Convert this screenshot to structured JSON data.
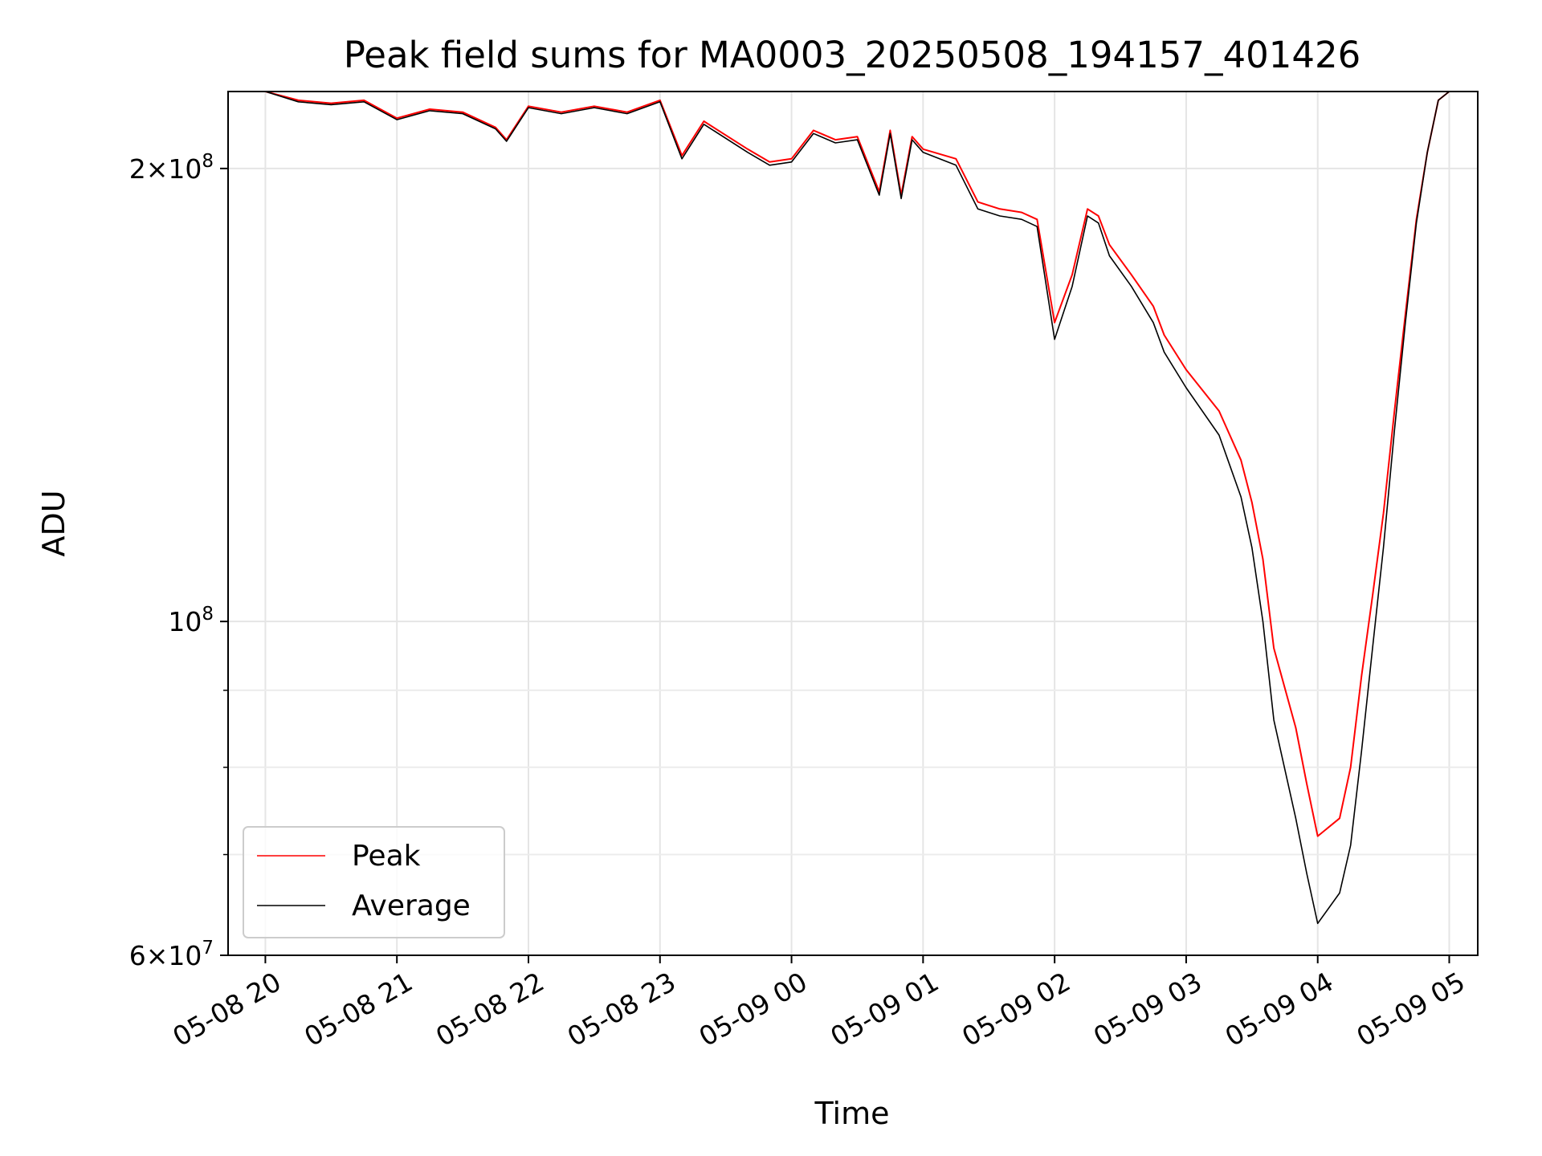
{
  "chart_data": {
    "type": "line",
    "title": "Peak field sums for MA0003_20250508_194157_401426",
    "xlabel": "Time",
    "ylabel": "ADU",
    "y_scale": "log",
    "ylim": [
      60000000,
      225000000
    ],
    "xlim": [
      "2025-05-08 19:43",
      "2025-05-09 05:13"
    ],
    "grid": true,
    "legend_position": "lower-left",
    "x_ticks": [
      {
        "value": "2025-05-08 20:00",
        "label": "05-08 20"
      },
      {
        "value": "2025-05-08 21:00",
        "label": "05-08 21"
      },
      {
        "value": "2025-05-08 22:00",
        "label": "05-08 22"
      },
      {
        "value": "2025-05-08 23:00",
        "label": "05-08 23"
      },
      {
        "value": "2025-05-09 00:00",
        "label": "05-09 00"
      },
      {
        "value": "2025-05-09 01:00",
        "label": "05-09 01"
      },
      {
        "value": "2025-05-09 02:00",
        "label": "05-09 02"
      },
      {
        "value": "2025-05-09 03:00",
        "label": "05-09 03"
      },
      {
        "value": "2025-05-09 04:00",
        "label": "05-09 04"
      },
      {
        "value": "2025-05-09 05:00",
        "label": "05-09 05"
      }
    ],
    "y_ticks": [
      {
        "value": 60000000,
        "mantissa": "6",
        "exponent": "7"
      },
      {
        "value": 100000000,
        "mantissa": "",
        "exponent": "8"
      },
      {
        "value": 200000000,
        "mantissa": "2",
        "exponent": "8"
      }
    ],
    "y_minor_ticks": [
      70000000,
      80000000,
      90000000
    ],
    "series": [
      {
        "name": "Peak",
        "color": "#ff0000",
        "x": [
          "2025-05-08 20:00",
          "2025-05-08 20:15",
          "2025-05-08 20:30",
          "2025-05-08 20:45",
          "2025-05-08 21:00",
          "2025-05-08 21:15",
          "2025-05-08 21:30",
          "2025-05-08 21:45",
          "2025-05-08 21:50",
          "2025-05-08 22:00",
          "2025-05-08 22:15",
          "2025-05-08 22:30",
          "2025-05-08 22:45",
          "2025-05-08 23:00",
          "2025-05-08 23:10",
          "2025-05-08 23:20",
          "2025-05-08 23:40",
          "2025-05-08 23:50",
          "2025-05-09 00:00",
          "2025-05-09 00:10",
          "2025-05-09 00:20",
          "2025-05-09 00:30",
          "2025-05-09 00:40",
          "2025-05-09 00:45",
          "2025-05-09 00:50",
          "2025-05-09 00:55",
          "2025-05-09 01:00",
          "2025-05-09 01:15",
          "2025-05-09 01:25",
          "2025-05-09 01:35",
          "2025-05-09 01:45",
          "2025-05-09 01:52",
          "2025-05-09 02:00",
          "2025-05-09 02:08",
          "2025-05-09 02:15",
          "2025-05-09 02:20",
          "2025-05-09 02:25",
          "2025-05-09 02:35",
          "2025-05-09 02:45",
          "2025-05-09 02:50",
          "2025-05-09 03:00",
          "2025-05-09 03:15",
          "2025-05-09 03:25",
          "2025-05-09 03:30",
          "2025-05-09 03:35",
          "2025-05-09 03:40",
          "2025-05-09 03:50",
          "2025-05-09 03:55",
          "2025-05-09 04:00",
          "2025-05-09 04:10",
          "2025-05-09 04:15",
          "2025-05-09 04:20",
          "2025-05-09 04:25",
          "2025-05-09 04:30",
          "2025-05-09 04:35",
          "2025-05-09 04:40",
          "2025-05-09 04:45",
          "2025-05-09 04:50",
          "2025-05-09 04:55",
          "2025-05-09 05:00"
        ],
        "values": [
          225000000,
          222000000,
          221000000,
          222000000,
          216000000,
          219000000,
          218000000,
          213000000,
          209000000,
          220000000,
          218000000,
          220000000,
          218000000,
          222000000,
          204000000,
          215000000,
          206000000,
          202000000,
          203000000,
          212000000,
          209000000,
          210000000,
          193000000,
          212000000,
          192000000,
          210000000,
          206000000,
          203000000,
          190000000,
          188000000,
          187000000,
          185000000,
          158000000,
          170000000,
          188000000,
          186000000,
          178000000,
          170000000,
          162000000,
          155000000,
          147000000,
          138000000,
          128000000,
          120000000,
          110000000,
          96000000,
          85000000,
          78000000,
          72000000,
          74000000,
          80000000,
          92000000,
          104000000,
          118000000,
          138000000,
          160000000,
          185000000,
          205000000,
          222000000,
          225000000
        ]
      },
      {
        "name": "Average",
        "color": "#000000",
        "x": [
          "2025-05-08 20:00",
          "2025-05-08 20:15",
          "2025-05-08 20:30",
          "2025-05-08 20:45",
          "2025-05-08 21:00",
          "2025-05-08 21:15",
          "2025-05-08 21:30",
          "2025-05-08 21:45",
          "2025-05-08 21:50",
          "2025-05-08 22:00",
          "2025-05-08 22:15",
          "2025-05-08 22:30",
          "2025-05-08 22:45",
          "2025-05-08 23:00",
          "2025-05-08 23:10",
          "2025-05-08 23:20",
          "2025-05-08 23:40",
          "2025-05-08 23:50",
          "2025-05-09 00:00",
          "2025-05-09 00:10",
          "2025-05-09 00:20",
          "2025-05-09 00:30",
          "2025-05-09 00:40",
          "2025-05-09 00:45",
          "2025-05-09 00:50",
          "2025-05-09 00:55",
          "2025-05-09 01:00",
          "2025-05-09 01:15",
          "2025-05-09 01:25",
          "2025-05-09 01:35",
          "2025-05-09 01:45",
          "2025-05-09 01:52",
          "2025-05-09 02:00",
          "2025-05-09 02:08",
          "2025-05-09 02:15",
          "2025-05-09 02:20",
          "2025-05-09 02:25",
          "2025-05-09 02:35",
          "2025-05-09 02:45",
          "2025-05-09 02:50",
          "2025-05-09 03:00",
          "2025-05-09 03:15",
          "2025-05-09 03:25",
          "2025-05-09 03:30",
          "2025-05-09 03:35",
          "2025-05-09 03:40",
          "2025-05-09 03:50",
          "2025-05-09 03:55",
          "2025-05-09 04:00",
          "2025-05-09 04:10",
          "2025-05-09 04:15",
          "2025-05-09 04:20",
          "2025-05-09 04:25",
          "2025-05-09 04:30",
          "2025-05-09 04:35",
          "2025-05-09 04:40",
          "2025-05-09 04:45",
          "2025-05-09 04:50",
          "2025-05-09 04:55",
          "2025-05-09 05:00"
        ],
        "values": [
          225000000,
          221500000,
          220500000,
          221500000,
          215500000,
          218500000,
          217500000,
          212500000,
          208500000,
          219500000,
          217500000,
          219500000,
          217500000,
          221500000,
          203000000,
          214000000,
          205000000,
          201000000,
          202000000,
          211000000,
          208000000,
          209000000,
          192000000,
          211000000,
          191000000,
          209000000,
          205000000,
          201000000,
          188000000,
          186000000,
          185000000,
          183000000,
          154000000,
          167000000,
          186000000,
          184000000,
          175000000,
          167000000,
          158000000,
          151000000,
          143000000,
          133000000,
          121000000,
          112000000,
          100000000,
          86000000,
          74000000,
          68000000,
          63000000,
          66000000,
          71000000,
          82000000,
          96000000,
          112000000,
          134000000,
          158000000,
          184000000,
          205000000,
          222000000,
          225000000
        ]
      }
    ]
  }
}
